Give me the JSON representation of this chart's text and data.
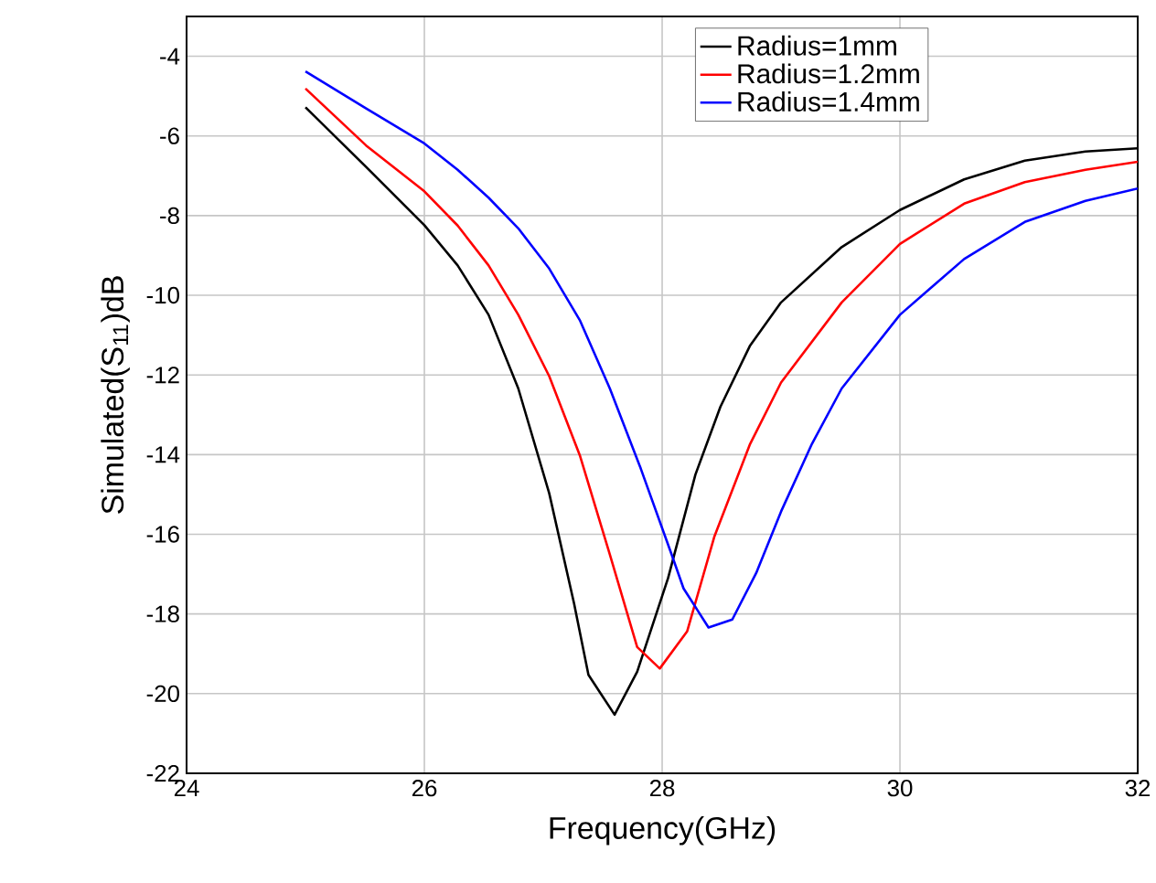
{
  "chart_data": {
    "type": "line",
    "xlabel": "Frequency(GHz)",
    "ylabel": "Simulated(S$_{11}$)dB",
    "xlim": [
      24,
      32
    ],
    "ylim": [
      -22,
      -3
    ],
    "xticks": [
      24,
      26,
      28,
      30,
      32
    ],
    "yticks": [
      -22,
      -20,
      -18,
      -16,
      -14,
      -12,
      -10,
      -8,
      -6,
      -4
    ],
    "grid": true,
    "legend": "top right",
    "marker": "none",
    "line_style": "solid",
    "series": [
      {
        "name": "Radius=1mm",
        "color": "#000000",
        "x": [
          25,
          25.51,
          26,
          26.28,
          26.54,
          26.79,
          27.05,
          27.26,
          27.38,
          27.6,
          27.79,
          28.05,
          28.28,
          28.49,
          28.74,
          29.0,
          29.51,
          30.0,
          30.54,
          31.05,
          31.56,
          32
        ],
        "values": [
          -5.28,
          -6.78,
          -8.24,
          -9.25,
          -10.49,
          -12.34,
          -14.97,
          -17.75,
          -19.53,
          -20.53,
          -19.45,
          -17.1,
          -14.5,
          -12.8,
          -11.26,
          -10.18,
          -8.79,
          -7.86,
          -7.09,
          -6.62,
          -6.39,
          -6.31
        ]
      },
      {
        "name": "Radius=1.2mm",
        "color": "#ff0000",
        "x": [
          25,
          25.51,
          26,
          26.28,
          26.54,
          26.79,
          27.05,
          27.31,
          27.56,
          27.79,
          27.98,
          28.21,
          28.44,
          28.74,
          29.0,
          29.51,
          30.0,
          30.54,
          31.05,
          31.56,
          32
        ],
        "values": [
          -4.81,
          -6.24,
          -7.39,
          -8.25,
          -9.25,
          -10.49,
          -12.03,
          -14.04,
          -16.51,
          -18.83,
          -19.37,
          -18.44,
          -16.05,
          -13.73,
          -12.19,
          -10.18,
          -8.71,
          -7.7,
          -7.16,
          -6.85,
          -6.65
        ]
      },
      {
        "name": "Radius=1.4mm",
        "color": "#0000ff",
        "x": [
          25,
          25.51,
          26,
          26.28,
          26.54,
          26.79,
          27.05,
          27.31,
          27.56,
          27.82,
          28.08,
          28.18,
          28.39,
          28.59,
          28.79,
          29.0,
          29.26,
          29.51,
          30.0,
          30.54,
          31.05,
          31.56,
          32
        ],
        "values": [
          -4.38,
          -5.31,
          -6.19,
          -6.85,
          -7.55,
          -8.32,
          -9.33,
          -10.64,
          -12.34,
          -14.35,
          -16.51,
          -17.36,
          -18.34,
          -18.14,
          -16.98,
          -15.43,
          -13.73,
          -12.34,
          -10.49,
          -9.09,
          -8.16,
          -7.63,
          -7.32
        ]
      }
    ]
  }
}
